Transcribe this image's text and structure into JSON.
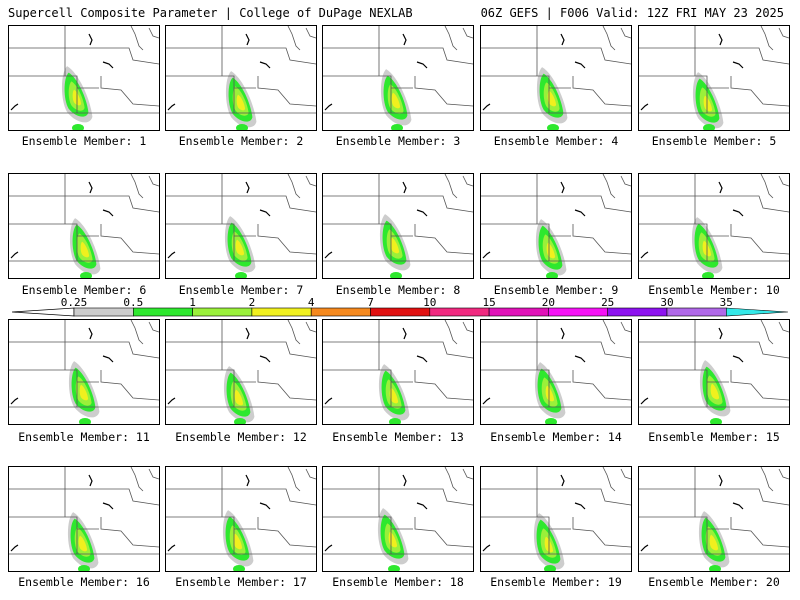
{
  "header": {
    "title": "Supercell Composite Parameter | College of DuPage NEXLAB",
    "run_info": "06Z GEFS | F006 Valid: 12Z FRI MAY 23 2025"
  },
  "caption_prefix": "Ensemble Member: ",
  "members": [
    1,
    2,
    3,
    4,
    5,
    6,
    7,
    8,
    9,
    10,
    11,
    12,
    13,
    14,
    15,
    16,
    17,
    18,
    19,
    20
  ],
  "colorbar": {
    "levels": [
      "0.25",
      "0.5",
      "1",
      "2",
      "4",
      "7",
      "10",
      "15",
      "20",
      "25",
      "30",
      "35"
    ],
    "colors": [
      "#cdcdcd",
      "#2ee82e",
      "#9af03a",
      "#f0f01e",
      "#f5891e",
      "#e01010",
      "#f02a80",
      "#e012b8",
      "#f512f5",
      "#8d12ef",
      "#b068e8",
      "#35e8e8"
    ]
  }
}
